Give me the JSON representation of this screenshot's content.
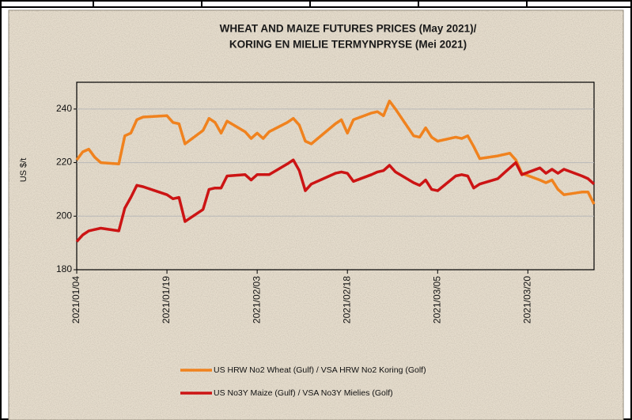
{
  "chart_data": {
    "type": "line",
    "title": [
      "WHEAT AND MAIZE FUTURES PRICES (May 2021)/",
      "KORING EN MIELIE TERMYNPRYSE (Mei 2021)"
    ],
    "y_label": "US $/t",
    "x": [
      "2021/01/04",
      "2021/01/05",
      "2021/01/06",
      "2021/01/07",
      "2021/01/08",
      "2021/01/11",
      "2021/01/12",
      "2021/01/13",
      "2021/01/14",
      "2021/01/15",
      "2021/01/19",
      "2021/01/20",
      "2021/01/21",
      "2021/01/22",
      "2021/01/25",
      "2021/01/26",
      "2021/01/27",
      "2021/01/28",
      "2021/01/29",
      "2021/02/01",
      "2021/02/02",
      "2021/02/03",
      "2021/02/04",
      "2021/02/05",
      "2021/02/08",
      "2021/02/09",
      "2021/02/10",
      "2021/02/11",
      "2021/02/12",
      "2021/02/16",
      "2021/02/17",
      "2021/02/18",
      "2021/02/19",
      "2021/02/22",
      "2021/02/23",
      "2021/02/24",
      "2021/02/25",
      "2021/02/26",
      "2021/03/01",
      "2021/03/02",
      "2021/03/03",
      "2021/03/04",
      "2021/03/05",
      "2021/03/08",
      "2021/03/09",
      "2021/03/10",
      "2021/03/11",
      "2021/03/12",
      "2021/03/15",
      "2021/03/16",
      "2021/03/17",
      "2021/03/18",
      "2021/03/19",
      "2021/03/22",
      "2021/03/23",
      "2021/03/24",
      "2021/03/25",
      "2021/03/26",
      "2021/03/29",
      "2021/03/30",
      "2021/03/31"
    ],
    "series": [
      {
        "name": "US HRW No2 Wheat (Gulf) / VSA HRW No2 Koring (Golf)",
        "color": "#f0821e",
        "values": [
          221,
          224,
          225,
          222,
          220,
          219.5,
          230,
          231,
          236,
          237,
          237.5,
          235,
          234.5,
          227,
          232,
          236.5,
          235,
          231,
          235.5,
          231.5,
          229,
          231,
          229,
          231.5,
          235,
          236.5,
          234,
          228,
          227,
          234.5,
          236,
          231,
          236,
          238.5,
          239,
          237.5,
          243,
          240,
          230,
          229.5,
          233,
          229.5,
          228,
          229.5,
          229,
          230,
          226,
          221.5,
          222.5,
          223,
          223.5,
          221,
          216,
          213.5,
          212.5,
          213.5,
          210,
          208,
          209,
          209,
          204.5
        ]
      },
      {
        "name": "US No3Y Maize (Gulf) / VSA No3Y Mielies (Golf)",
        "color": "#cc1414",
        "values": [
          190.5,
          193,
          194.5,
          195,
          195.5,
          194.5,
          203,
          207,
          211.5,
          211,
          208,
          206.5,
          207,
          198,
          202.5,
          210,
          210.5,
          210.5,
          215,
          215.5,
          213.5,
          215.5,
          215.5,
          215.5,
          219.5,
          221,
          217,
          209.5,
          212,
          216,
          216.5,
          216,
          213,
          215.5,
          216.5,
          217,
          219,
          216.5,
          212.5,
          211.5,
          213.5,
          210,
          209.5,
          215,
          215.5,
          215,
          210.5,
          212,
          214,
          216,
          218,
          220,
          215.5,
          218,
          216,
          217.5,
          216,
          217.5,
          215,
          214,
          212
        ]
      }
    ],
    "xlim": [
      "2021/01/04",
      "2021/03/31"
    ],
    "xticks": [
      "2021/01/04",
      "2021/01/19",
      "2021/02/03",
      "2021/02/18",
      "2021/03/05",
      "2021/03/20"
    ],
    "ylim": [
      180,
      250
    ],
    "yticks": [
      180,
      200,
      220,
      240
    ],
    "grid": true,
    "legend": "bottom"
  }
}
